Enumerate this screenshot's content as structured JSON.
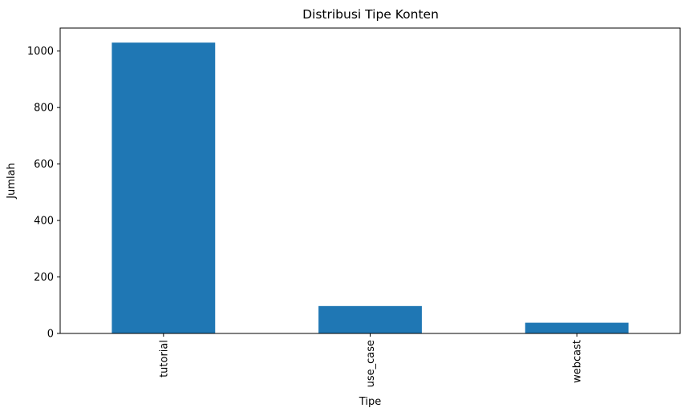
{
  "chart_data": {
    "type": "bar",
    "title": "Distribusi Tipe Konten",
    "xlabel": "Tipe",
    "ylabel": "Jumlah",
    "categories": [
      "tutorial",
      "use_case",
      "webcast"
    ],
    "values": [
      1030,
      97,
      38
    ],
    "ylim": [
      0,
      1081.5
    ],
    "yticks": [
      0,
      200,
      400,
      600,
      800,
      1000
    ],
    "bar_color": "#1f77b4",
    "grid": false,
    "legend": "none"
  }
}
